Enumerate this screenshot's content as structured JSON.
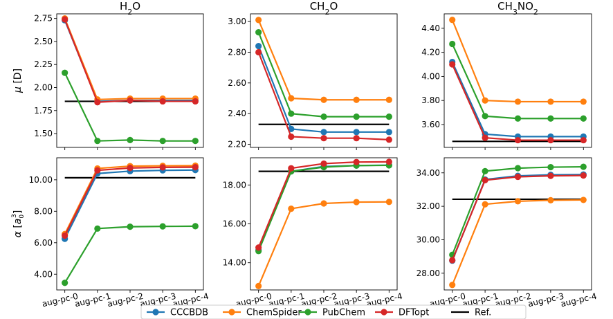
{
  "colors": {
    "CCCBDB": "#1f77b4",
    "ChemSpider": "#ff7f0e",
    "PubChem": "#2ca02c",
    "DFTopt": "#d62728",
    "Ref.": "#000000"
  },
  "chart_data": [
    {
      "id": "h2o-mu",
      "type": "line",
      "title": "H2O",
      "ylabel": "μ [D]",
      "x": [
        "aug-pc-0",
        "aug-pc-1",
        "aug-pc-2",
        "aug-pc-3",
        "aug-pc-4"
      ],
      "ylim": [
        1.35,
        2.8
      ],
      "yticks": [
        "1.50",
        "1.75",
        "2.00",
        "2.25",
        "2.50",
        "2.75"
      ],
      "reference": 1.85,
      "series": [
        {
          "name": "CCCBDB",
          "values": [
            2.73,
            1.85,
            1.86,
            1.86,
            1.86
          ]
        },
        {
          "name": "ChemSpider",
          "values": [
            2.75,
            1.87,
            1.88,
            1.88,
            1.88
          ]
        },
        {
          "name": "PubChem",
          "values": [
            2.16,
            1.42,
            1.43,
            1.42,
            1.42
          ]
        },
        {
          "name": "DFTopt",
          "values": [
            2.74,
            1.84,
            1.86,
            1.85,
            1.85
          ]
        }
      ]
    },
    {
      "id": "ch2o-mu",
      "type": "line",
      "title": "CH2O",
      "ylabel": "",
      "x": [
        "aug-pc-0",
        "aug-pc-1",
        "aug-pc-2",
        "aug-pc-3",
        "aug-pc-4"
      ],
      "ylim": [
        2.18,
        3.05
      ],
      "yticks": [
        "2.20",
        "2.40",
        "2.60",
        "2.80",
        "3.00"
      ],
      "reference": 2.33,
      "series": [
        {
          "name": "CCCBDB",
          "values": [
            2.84,
            2.3,
            2.28,
            2.28,
            2.28
          ]
        },
        {
          "name": "ChemSpider",
          "values": [
            3.01,
            2.5,
            2.49,
            2.49,
            2.49
          ]
        },
        {
          "name": "PubChem",
          "values": [
            2.93,
            2.4,
            2.38,
            2.38,
            2.38
          ]
        },
        {
          "name": "DFTopt",
          "values": [
            2.8,
            2.25,
            2.24,
            2.24,
            2.23
          ]
        }
      ]
    },
    {
      "id": "ch3no2-mu",
      "type": "line",
      "title": "CH3NO2",
      "ylabel": "",
      "x": [
        "aug-pc-0",
        "aug-pc-1",
        "aug-pc-2",
        "aug-pc-3",
        "aug-pc-4"
      ],
      "ylim": [
        3.41,
        4.52
      ],
      "yticks": [
        "3.60",
        "3.80",
        "4.00",
        "4.20",
        "4.40"
      ],
      "reference": 3.46,
      "series": [
        {
          "name": "CCCBDB",
          "values": [
            4.12,
            3.52,
            3.5,
            3.5,
            3.5
          ]
        },
        {
          "name": "ChemSpider",
          "values": [
            4.47,
            3.8,
            3.79,
            3.79,
            3.79
          ]
        },
        {
          "name": "PubChem",
          "values": [
            4.27,
            3.67,
            3.65,
            3.65,
            3.65
          ]
        },
        {
          "name": "DFTopt",
          "values": [
            4.1,
            3.49,
            3.47,
            3.47,
            3.47
          ]
        }
      ]
    },
    {
      "id": "h2o-alpha",
      "type": "line",
      "title": "",
      "ylabel": "α [a03]",
      "x": [
        "aug-pc-0",
        "aug-pc-1",
        "aug-pc-2",
        "aug-pc-3",
        "aug-pc-4"
      ],
      "ylim": [
        3.0,
        11.4
      ],
      "yticks": [
        "4.00",
        "6.00",
        "8.00",
        "10.00"
      ],
      "reference": 10.13,
      "series": [
        {
          "name": "CCCBDB",
          "values": [
            6.25,
            10.4,
            10.55,
            10.6,
            10.62
          ]
        },
        {
          "name": "ChemSpider",
          "values": [
            6.55,
            10.72,
            10.87,
            10.89,
            10.9
          ]
        },
        {
          "name": "PubChem",
          "values": [
            3.45,
            6.9,
            7.02,
            7.04,
            7.05
          ]
        },
        {
          "name": "DFTopt",
          "values": [
            6.45,
            10.6,
            10.75,
            10.79,
            10.8
          ]
        }
      ]
    },
    {
      "id": "ch2o-alpha",
      "type": "line",
      "title": "",
      "ylabel": "",
      "x": [
        "aug-pc-0",
        "aug-pc-1",
        "aug-pc-2",
        "aug-pc-3",
        "aug-pc-4"
      ],
      "ylim": [
        12.6,
        19.4
      ],
      "yticks": [
        "14.00",
        "16.00",
        "18.00"
      ],
      "reference": 18.7,
      "series": [
        {
          "name": "CCCBDB",
          "values": [
            14.65,
            18.7,
            18.95,
            19.0,
            19.02
          ]
        },
        {
          "name": "ChemSpider",
          "values": [
            12.8,
            16.78,
            17.05,
            17.12,
            17.13
          ]
        },
        {
          "name": "PubChem",
          "values": [
            14.6,
            18.7,
            18.92,
            19.0,
            19.01
          ]
        },
        {
          "name": "DFTopt",
          "values": [
            14.78,
            18.86,
            19.1,
            19.18,
            19.19
          ]
        }
      ]
    },
    {
      "id": "ch3no2-alpha",
      "type": "line",
      "title": "",
      "ylabel": "",
      "x": [
        "aug-pc-0",
        "aug-pc-1",
        "aug-pc-2",
        "aug-pc-3",
        "aug-pc-4"
      ],
      "ylim": [
        27.0,
        34.9
      ],
      "yticks": [
        "28.00",
        "30.00",
        "32.00",
        "34.00"
      ],
      "reference": 32.42,
      "series": [
        {
          "name": "CCCBDB",
          "values": [
            28.75,
            33.6,
            33.82,
            33.88,
            33.9
          ]
        },
        {
          "name": "ChemSpider",
          "values": [
            27.3,
            32.12,
            32.3,
            32.36,
            32.38
          ]
        },
        {
          "name": "PubChem",
          "values": [
            29.1,
            34.1,
            34.28,
            34.34,
            34.36
          ]
        },
        {
          "name": "DFTopt",
          "values": [
            28.78,
            33.56,
            33.76,
            33.82,
            33.84
          ]
        }
      ]
    }
  ],
  "legend": {
    "position": "bottom-center",
    "entries": [
      "CCCBDB",
      "ChemSpider",
      "PubChem",
      "DFTopt",
      "Ref."
    ]
  }
}
